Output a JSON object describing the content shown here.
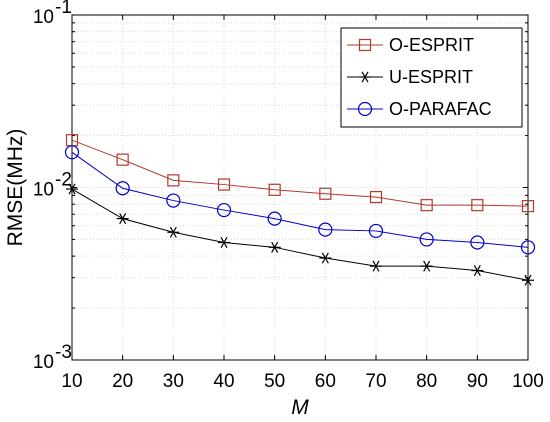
{
  "chart_data": {
    "type": "line",
    "xlabel": "M",
    "ylabel": "RMSE(MHz)",
    "x": [
      10,
      20,
      30,
      40,
      50,
      60,
      70,
      80,
      90,
      100
    ],
    "xlim": [
      10,
      100
    ],
    "ylim": [
      0.001,
      0.1
    ],
    "yscale": "log",
    "grid": true,
    "legend_position": "top-right",
    "x_tick_labels": [
      "10",
      "20",
      "30",
      "40",
      "50",
      "60",
      "70",
      "80",
      "90",
      "100"
    ],
    "y_tick_labels": [
      {
        "base": "10",
        "exp": "-3",
        "value": 0.001
      },
      {
        "base": "10",
        "exp": "-2",
        "value": 0.01
      },
      {
        "base": "10",
        "exp": "-1",
        "value": 0.1
      }
    ],
    "series": [
      {
        "name": "O-ESPRIT",
        "color": "#b03a2e",
        "marker": "square",
        "values": [
          0.0188,
          0.0145,
          0.011,
          0.0104,
          0.0097,
          0.0092,
          0.0088,
          0.0079,
          0.0079,
          0.0078
        ]
      },
      {
        "name": "U-ESPRIT",
        "color": "#000000",
        "marker": "asterisk",
        "values": [
          0.0098,
          0.0066,
          0.0055,
          0.0048,
          0.0045,
          0.0039,
          0.0035,
          0.0035,
          0.0033,
          0.0029
        ]
      },
      {
        "name": "O-PARAFAC",
        "color": "#0000cc",
        "marker": "circle",
        "values": [
          0.016,
          0.0099,
          0.0084,
          0.0074,
          0.0066,
          0.0057,
          0.0056,
          0.005,
          0.0048,
          0.0045
        ]
      }
    ]
  }
}
